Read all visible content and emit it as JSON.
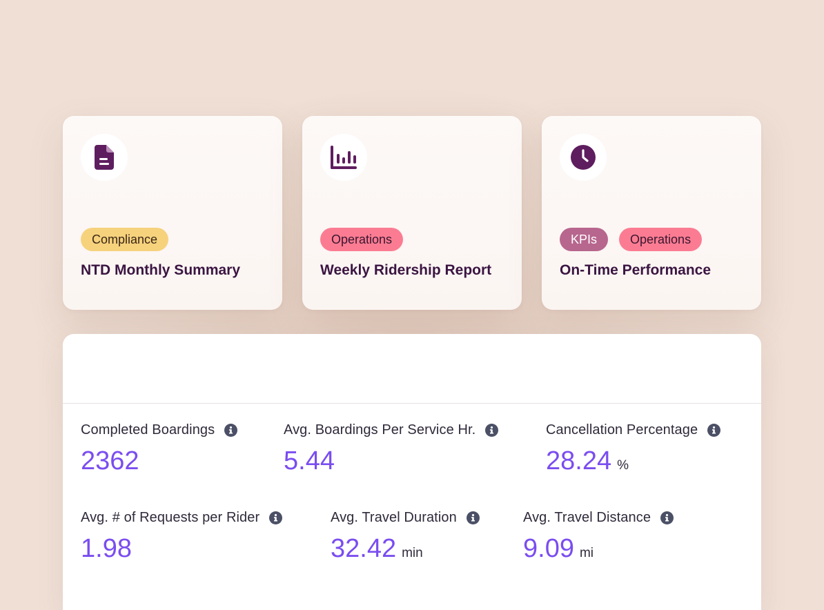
{
  "cards": [
    {
      "icon": "document-icon",
      "tags": [
        "Compliance"
      ],
      "title": "NTD Monthly Summary"
    },
    {
      "icon": "bar-chart-icon",
      "tags": [
        "Operations"
      ],
      "title": "Weekly Ridership Report"
    },
    {
      "icon": "clock-icon",
      "tags": [
        "KPIs",
        "Operations"
      ],
      "title": "On-Time Performance"
    }
  ],
  "metrics": [
    {
      "label": "Completed Boardings",
      "value": "2362",
      "unit": ""
    },
    {
      "label": "Avg. Boardings Per Service Hr.",
      "value": "5.44",
      "unit": ""
    },
    {
      "label": "Cancellation Percentage",
      "value": "28.24",
      "unit": "%"
    },
    {
      "label": "Avg. # of Requests per Rider",
      "value": "1.98",
      "unit": ""
    },
    {
      "label": "Avg. Travel Duration",
      "value": "32.42",
      "unit": "min"
    },
    {
      "label": "Avg. Travel Distance",
      "value": "9.09",
      "unit": "mi"
    }
  ],
  "colors": {
    "background": "#efdfd5",
    "accent_value": "#7a4df0",
    "icon": "#5e1d5f",
    "tag_compliance": "#f6d27d",
    "tag_operations": "#fb7c92",
    "tag_kpis": "#b7668e"
  }
}
